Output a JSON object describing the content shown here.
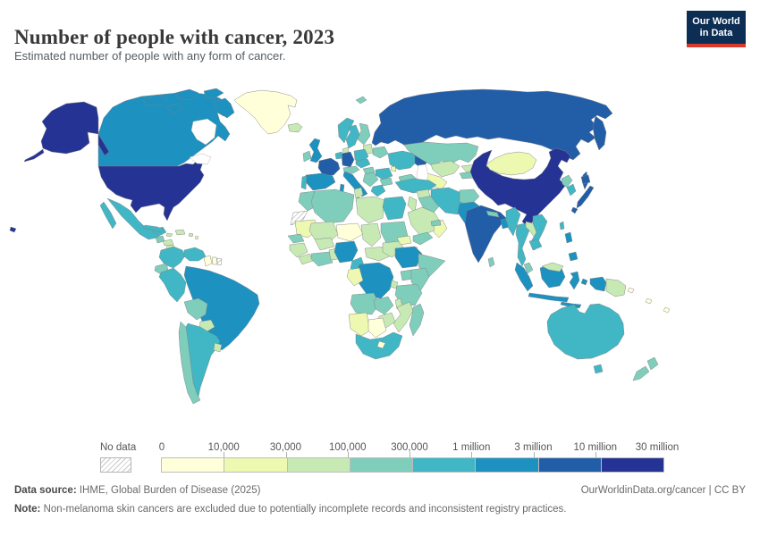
{
  "header": {
    "title": "Number of people with cancer, 2023",
    "subtitle": "Estimated number of people with any form of cancer.",
    "logo": {
      "line1": "Our World",
      "line2": "in Data"
    }
  },
  "colors": {
    "logo_bg": "#0d2e54",
    "logo_accent": "#d93a2b",
    "map_border": "#828282",
    "no_data_hatch": "#c9c9c9"
  },
  "legend": {
    "no_data_label": "No data",
    "tick_labels": [
      "0",
      "10,000",
      "30,000",
      "100,000",
      "300,000",
      "1 million",
      "3 million",
      "10 million",
      "30 million"
    ],
    "bin_colors": [
      "#FFFFD9",
      "#EDF8B1",
      "#C7E9B4",
      "#7FCDBB",
      "#41B6C4",
      "#1D91C0",
      "#225EA8",
      "#253494"
    ]
  },
  "footer": {
    "source_label": "Data source:",
    "source_text": " IHME, Global Burden of Disease (2025)",
    "credit": "OurWorldinData.org/cancer | CC BY",
    "note_label": "Note:",
    "note_text": " Non-melanoma skin cancers are excluded due to potentially incomplete records and inconsistent registry practices."
  },
  "chart_data": {
    "type": "heatmap",
    "subtype": "choropleth-world-map",
    "title": "Number of people with cancer, 2023",
    "legend_position": "bottom",
    "bins": [
      {
        "label": "0",
        "range": "0–10,000",
        "color": "#FFFFD9"
      },
      {
        "label": "10,000",
        "range": "10,000–30,000",
        "color": "#EDF8B1"
      },
      {
        "label": "30,000",
        "range": "30,000–100,000",
        "color": "#C7E9B4"
      },
      {
        "label": "100,000",
        "range": "100,000–300,000",
        "color": "#7FCDBB"
      },
      {
        "label": "300,000",
        "range": "300,000–1 million",
        "color": "#41B6C4"
      },
      {
        "label": "1 million",
        "range": "1–3 million",
        "color": "#1D91C0"
      },
      {
        "label": "3 million",
        "range": "3–10 million",
        "color": "#225EA8"
      },
      {
        "label": "10 million",
        "range": "10–30 million",
        "color": "#253494"
      }
    ],
    "region_bins": {
      "usa": 7,
      "canada": 5,
      "greenland": 0,
      "iceland": 2,
      "mexico": 4,
      "guatemala": 3,
      "honduras": 2,
      "nicaragua": 1,
      "costa-rica-panama": 3,
      "cuba": 4,
      "jamaica": 2,
      "hispaniola": 2,
      "puerto-rico": 2,
      "lesser-antilles": 1,
      "colombia": 4,
      "venezuela": 4,
      "guyana": 0,
      "suriname": 0,
      "french-guiana": "no-data",
      "ecuador": 3,
      "peru": 4,
      "brazil": 5,
      "bolivia": 3,
      "paraguay": 2,
      "uruguay": 2,
      "chile": 3,
      "argentina": 4,
      "uk": 5,
      "ireland": 3,
      "norway": 4,
      "sweden": 4,
      "finland": 3,
      "denmark": 2,
      "baltics": 2,
      "belarus": 3,
      "poland": 4,
      "germany": 6,
      "benelux": 4,
      "france": 6,
      "switzerland-austria": 3,
      "czech-slovakia": 4,
      "hungary": 3,
      "ukraine": 4,
      "moldova": 1,
      "romania": 4,
      "balkans": 3,
      "bulgaria": 3,
      "greece": 4,
      "italy": 5,
      "spain": 5,
      "portugal": 4,
      "russia": 6,
      "svalbard": 3,
      "kazakhstan": 3,
      "uzbekistan": 2,
      "turkmenistan": 1,
      "kyrgyzstan": 2,
      "tajikistan": 3,
      "caucasus": 3,
      "turkey": 4,
      "syria": 2,
      "iraq": 3,
      "israel-jordan": 2,
      "saudi-arabia": 2,
      "yemen": 3,
      "oman": 1,
      "uae": 3,
      "iran": 4,
      "afghanistan": 3,
      "pakistan": 5,
      "india": 6,
      "nepal": 3,
      "bangladesh": 5,
      "sri-lanka": 3,
      "china": 7,
      "mongolia": 1,
      "myanmar": 4,
      "thailand": 4,
      "laos": 2,
      "vietnam": 4,
      "cambodia": 4,
      "malaysia": 3,
      "east-malaysia": 2,
      "indonesia": 5,
      "philippines": 5,
      "taiwan": 4,
      "north-korea": 3,
      "south-korea": 4,
      "japan": 6,
      "morocco": 3,
      "western-sahara": "no-data",
      "algeria": 3,
      "tunisia": 2,
      "libya": 2,
      "egypt": 4,
      "mauritania": 1,
      "mali": 2,
      "niger": 0,
      "chad": 2,
      "sudan": 3,
      "senegal": 3,
      "guinea": 2,
      "sierra-leone-liberia": 2,
      "ivory-coast-ghana": 3,
      "burkina-faso": 2,
      "benin-togo": 2,
      "nigeria": 5,
      "cameroon": 4,
      "central-african-republic": 2,
      "south-sudan": 2,
      "eritrea": 1,
      "djibouti": 0,
      "ethiopia": 5,
      "somalia": 3,
      "uganda": 3,
      "kenya": 3,
      "drc": 5,
      "gabon-congo": 1,
      "rwanda-burundi": 2,
      "tanzania": 3,
      "angola": 3,
      "zambia": 3,
      "malawi": 2,
      "mozambique": 2,
      "zimbabwe": 2,
      "namibia": 1,
      "botswana": 0,
      "south-africa": 4,
      "lesotho": 0,
      "madagascar": 3,
      "australia": 4,
      "new-zealand": 3,
      "papua-new-guinea": 2,
      "pacific-islands": 0
    }
  }
}
